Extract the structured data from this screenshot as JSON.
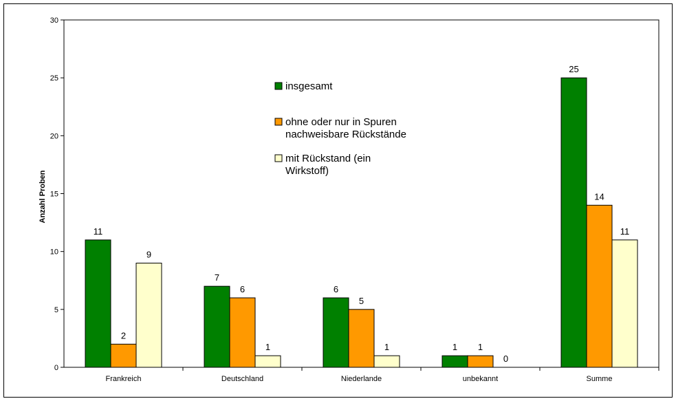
{
  "chart_data": {
    "type": "bar",
    "title": "",
    "xlabel": "",
    "ylabel": "Anzahl Proben",
    "ylim": [
      0,
      30
    ],
    "yticks": [
      0,
      5,
      10,
      15,
      20,
      25,
      30
    ],
    "grid": false,
    "legend_position": "inside-center-top",
    "categories": [
      "Frankreich",
      "Deutschland",
      "Niederlande",
      "unbekannt",
      "Summe"
    ],
    "series": [
      {
        "name": "insgesamt",
        "values": [
          11,
          7,
          6,
          1,
          25
        ],
        "color": "#008000"
      },
      {
        "name": "ohne oder nur in Spuren nachweisbare Rückstände",
        "values": [
          2,
          6,
          5,
          1,
          14
        ],
        "color": "#FF9900"
      },
      {
        "name": "mit Rückstand (ein Wirkstoff)",
        "values": [
          9,
          1,
          1,
          0,
          11
        ],
        "color": "#FFFFCC"
      }
    ],
    "legend": [
      {
        "lines": [
          "insgesamt"
        ]
      },
      {
        "lines": [
          "ohne oder nur in Spuren",
          "nachweisbare Rückstände"
        ]
      },
      {
        "lines": [
          "mit Rückstand (ein",
          "Wirkstoff)"
        ]
      }
    ]
  }
}
